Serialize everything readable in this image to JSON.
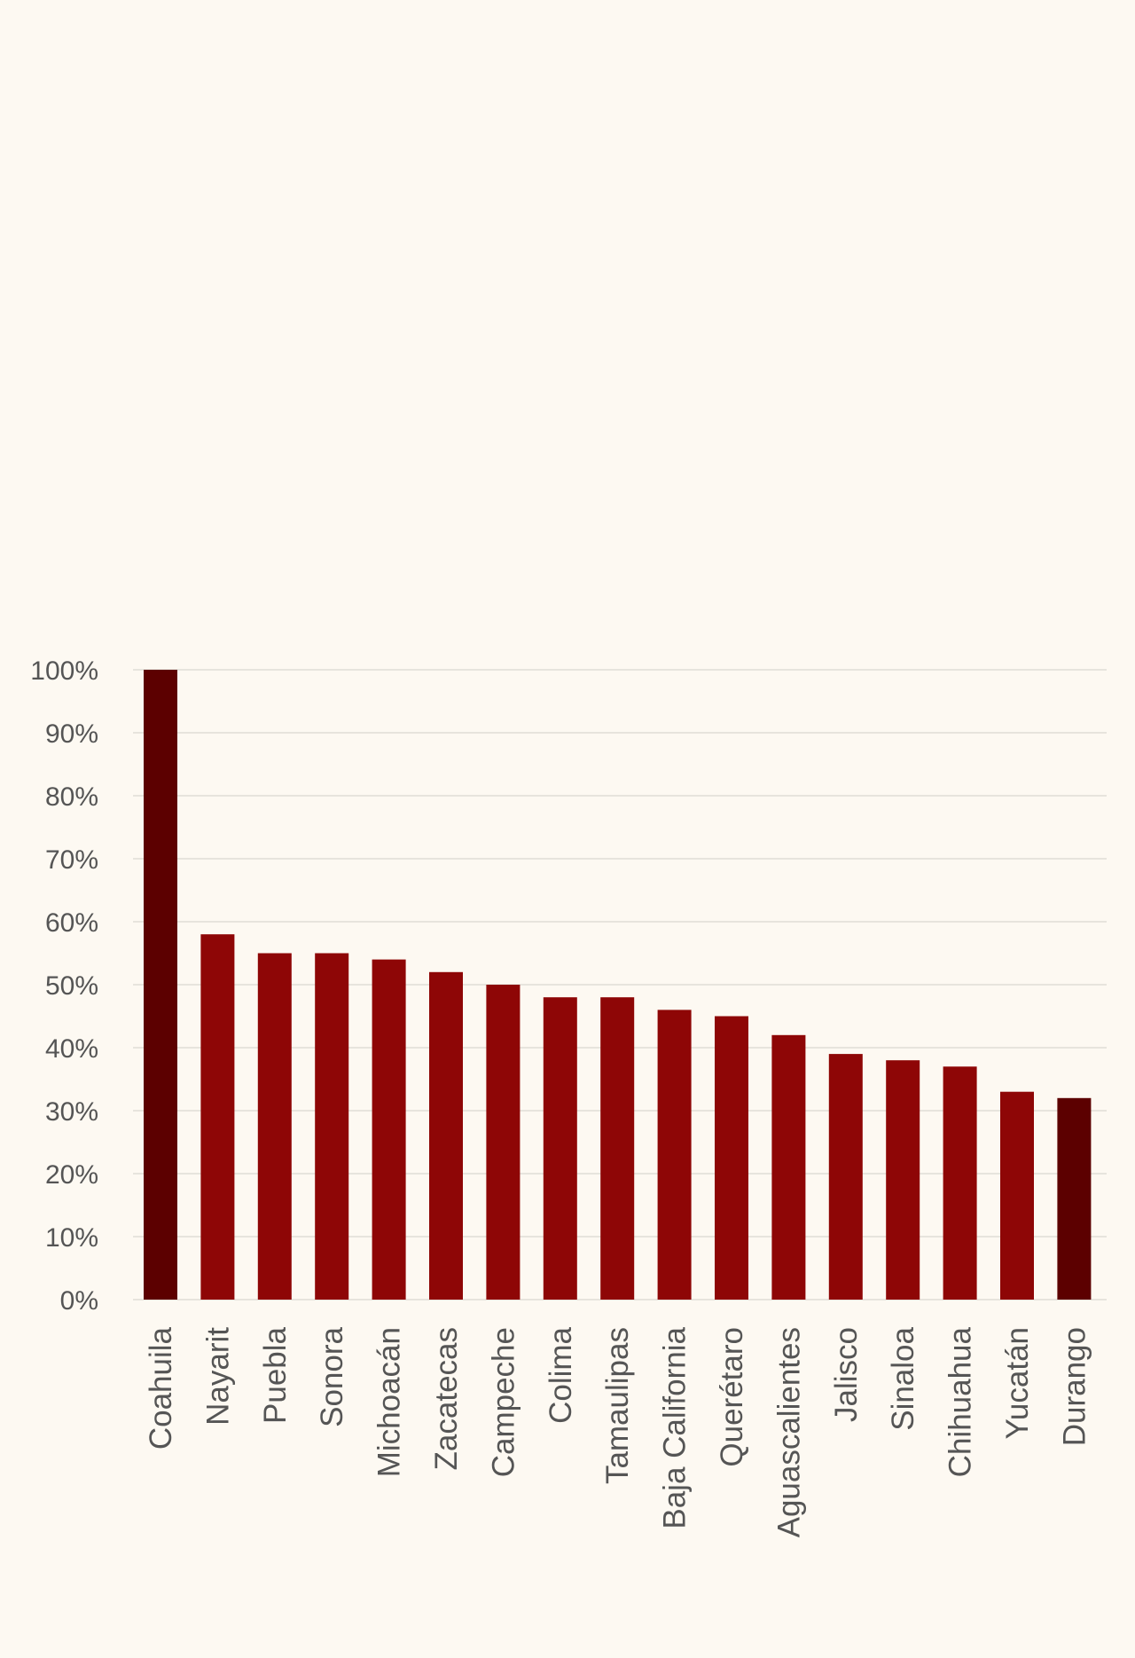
{
  "chart_data": {
    "type": "bar",
    "title": "",
    "xlabel": "",
    "ylabel": "",
    "ylim": [
      0,
      100
    ],
    "yticks": [
      0,
      10,
      20,
      30,
      40,
      50,
      60,
      70,
      80,
      90,
      100
    ],
    "ytick_format": "percent",
    "grid": true,
    "legend": "none",
    "categories": [
      "Coahuila",
      "Nayarit",
      "Puebla",
      "Sonora",
      "Michoacán",
      "Zacatecas",
      "Campeche",
      "Colima",
      "Tamaulipas",
      "Baja California",
      "Querétaro",
      "Aguascalientes",
      "Jalisco",
      "Sinaloa",
      "Chihuahua",
      "Yucatán",
      "Durango"
    ],
    "values": [
      100,
      58,
      55,
      55,
      54,
      52,
      50,
      48,
      48,
      46,
      45,
      42,
      39,
      38,
      37,
      33,
      32
    ],
    "colors": {
      "default": "#8e0606",
      "highlight": "#5c0000",
      "background": "#fdf9f2",
      "grid": "#e0ddd6",
      "text": "#555555"
    },
    "highlighted": [
      "Coahuila",
      "Durango"
    ]
  }
}
